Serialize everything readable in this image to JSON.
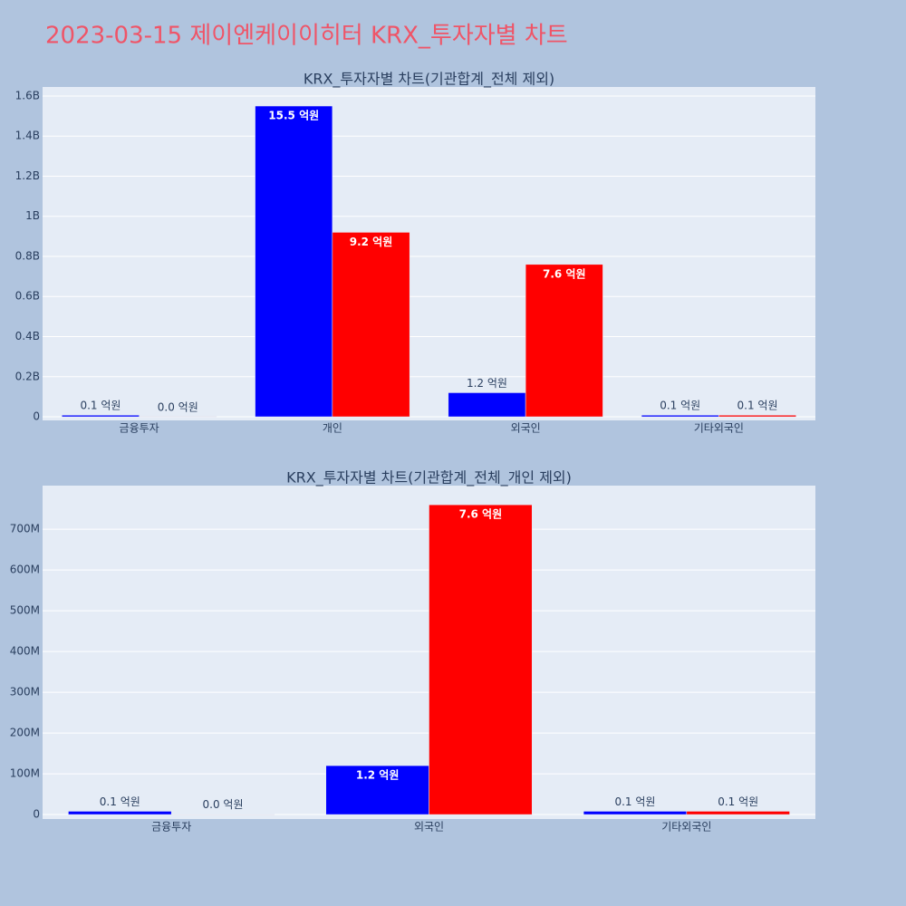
{
  "title": "2023-03-15 제이엔케이이히터 KRX_투자자별 차트",
  "chart_data": [
    {
      "type": "bar",
      "title": "KRX_투자자별 차트(기관합계_전체 제외)",
      "categories": [
        "금융투자",
        "개인",
        "외국인",
        "기타외국인"
      ],
      "series": [
        {
          "color": "#0000ff",
          "values": [
            8000000,
            1550000000,
            120000000,
            8000000
          ],
          "value_labels": [
            "0.1 억원",
            "15.5 억원",
            "1.2 억원",
            "0.1 억원"
          ]
        },
        {
          "color": "#ff0000",
          "values": [
            1000000,
            920000000,
            760000000,
            8000000
          ],
          "value_labels": [
            "0.0 억원",
            "9.2 억원",
            "7.6 억원",
            "0.1 억원"
          ]
        }
      ],
      "ylim": [
        -18000000,
        1645000000
      ],
      "yticks": [
        0,
        {
          "value": 200000000,
          "label": "0.2B"
        },
        {
          "value": 400000000,
          "label": "0.4B"
        },
        {
          "value": 600000000,
          "label": "0.6B"
        },
        {
          "value": 800000000,
          "label": "0.8B"
        },
        {
          "value": 1000000000,
          "label": "1B"
        },
        {
          "value": 1200000000,
          "label": "1.2B"
        },
        {
          "value": 1400000000,
          "label": "1.4B"
        },
        {
          "value": 1600000000,
          "label": "1.6B"
        }
      ],
      "grid": true
    },
    {
      "type": "bar",
      "title": "KRX_투자자별 차트(기관합계_전체_개인 제외)",
      "categories": [
        "금융투자",
        "외국인",
        "기타외국인"
      ],
      "series": [
        {
          "color": "#0000ff",
          "values": [
            8000000,
            120000000,
            8000000
          ],
          "value_labels": [
            "0.1 억원",
            "1.2 억원",
            "0.1 억원"
          ]
        },
        {
          "color": "#ff0000",
          "values": [
            1000000,
            760000000,
            8000000
          ],
          "value_labels": [
            "0.0 억원",
            "7.6 억원",
            "0.1 억원"
          ]
        }
      ],
      "ylim": [
        -11000000,
        807000000
      ],
      "yticks": [
        0,
        {
          "value": 100000000,
          "label": "100M"
        },
        {
          "value": 200000000,
          "label": "200M"
        },
        {
          "value": 300000000,
          "label": "300M"
        },
        {
          "value": 400000000,
          "label": "400M"
        },
        {
          "value": 500000000,
          "label": "500M"
        },
        {
          "value": 600000000,
          "label": "600M"
        },
        {
          "value": 700000000,
          "label": "700M"
        }
      ],
      "grid": true
    }
  ]
}
